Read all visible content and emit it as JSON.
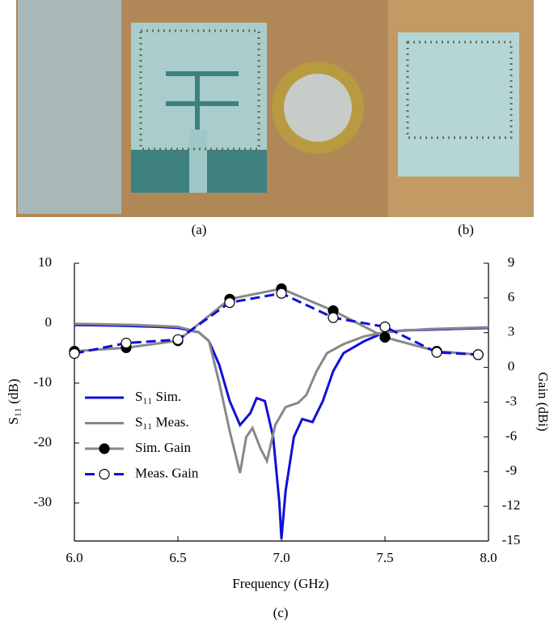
{
  "figure": {
    "labels": [
      "(a)",
      "(b)",
      "(c)"
    ]
  },
  "chart_data": {
    "type": "line",
    "x_label": "Frequency (GHz)",
    "y_label": "S₁₁ (dB)",
    "y2_label": "Gain (dBi)",
    "xlim": [
      6.0,
      8.0
    ],
    "xticks": [
      {
        "value": 6,
        "label": "6.0"
      },
      {
        "value": 6.5,
        "label": "6.5"
      },
      {
        "value": 7,
        "label": "7.0"
      },
      {
        "value": 7.5,
        "label": "7.5"
      },
      {
        "value": 8,
        "label": "8.0"
      }
    ],
    "ylim": [
      -36.35,
      10
    ],
    "yticks": [
      10,
      0,
      -10,
      -20,
      -30
    ],
    "y2lim": [
      -15,
      9
    ],
    "y2ticks": [
      9,
      6,
      3,
      0,
      -3,
      -6,
      -9,
      -12,
      -15
    ],
    "legend": "lower left",
    "series": [
      {
        "name": "S₁₁ Sim.",
        "color": "#1010d8",
        "style": "solid",
        "marker": "none",
        "x": [
          6.0,
          6.2,
          6.4,
          6.5,
          6.6,
          6.65,
          6.7,
          6.75,
          6.8,
          6.85,
          6.88,
          6.92,
          6.96,
          6.99,
          7.0,
          7.02,
          7.06,
          7.1,
          7.15,
          7.2,
          7.25,
          7.3,
          7.4,
          7.5,
          7.6,
          7.8,
          8.0
        ],
        "values": [
          -0.3,
          -0.4,
          -0.6,
          -0.8,
          -1.5,
          -3,
          -7,
          -13,
          -17,
          -15,
          -12.5,
          -13,
          -19,
          -30,
          -36,
          -28,
          -19,
          -16,
          -16.5,
          -13,
          -8,
          -5,
          -3,
          -1.5,
          -1.2,
          -1,
          -0.8
        ]
      },
      {
        "name": "S₁₁ Meas.",
        "color": "#888888",
        "style": "solid",
        "marker": "none",
        "x": [
          6.0,
          6.3,
          6.5,
          6.6,
          6.65,
          6.7,
          6.75,
          6.8,
          6.83,
          6.86,
          6.9,
          6.93,
          6.97,
          7.02,
          7.08,
          7.12,
          7.17,
          7.22,
          7.3,
          7.4,
          7.5,
          7.7,
          8.0
        ],
        "values": [
          -0.1,
          -0.3,
          -0.6,
          -1.5,
          -3,
          -10,
          -18,
          -25,
          -19,
          -17.5,
          -21,
          -23,
          -17,
          -14,
          -13.3,
          -12,
          -8,
          -5,
          -3.5,
          -2.2,
          -1.5,
          -1,
          -0.7
        ]
      },
      {
        "name": "Sim. Gain",
        "color": "#888888",
        "style": "solid",
        "marker": "filled",
        "axis": "y2",
        "x": [
          6.0,
          6.25,
          6.5,
          6.75,
          7.0,
          7.25,
          7.5,
          7.75,
          7.95
        ],
        "values": [
          1.4,
          1.7,
          2.3,
          5.9,
          6.8,
          4.9,
          2.6,
          1.4,
          1.1
        ]
      },
      {
        "name": "Meas. Gain",
        "color": "#1010d8",
        "style": "dashed",
        "marker": "open",
        "axis": "y2",
        "x": [
          6.0,
          6.25,
          6.5,
          6.75,
          7.0,
          7.25,
          7.5,
          7.75,
          7.95
        ],
        "values": [
          1.2,
          2.1,
          2.4,
          5.6,
          6.4,
          4.3,
          3.5,
          1.3,
          1.1
        ]
      }
    ]
  }
}
